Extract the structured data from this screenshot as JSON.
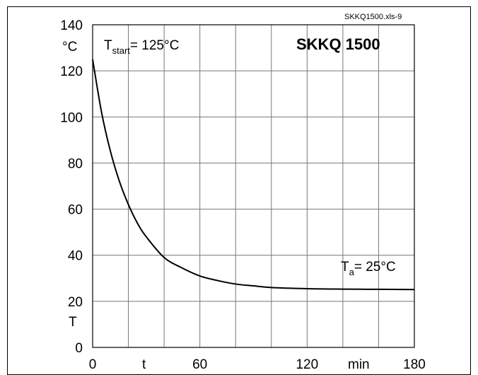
{
  "chart_data": {
    "type": "line",
    "title": "SKKQ 1500",
    "file_ref": "SKKQ1500.xls-9",
    "y_unit": "°C",
    "ylabel": "T",
    "x_unit": "min",
    "xlabel": "t",
    "xlim": [
      0,
      180
    ],
    "ylim": [
      0,
      140
    ],
    "x_ticks": [
      0,
      60,
      120,
      180
    ],
    "y_ticks": [
      0,
      20,
      40,
      60,
      80,
      100,
      120,
      140
    ],
    "grid": true,
    "annotations": {
      "start": {
        "base": "T",
        "sub": "start",
        "rest": "= 125°C"
      },
      "ambient": {
        "base": "T",
        "sub": "a",
        "rest": "= 25°C"
      }
    },
    "series": [
      {
        "x": [
          0,
          5,
          10,
          15,
          20,
          25,
          30,
          40,
          50,
          60,
          70,
          80,
          90,
          100,
          120,
          140,
          160,
          180
        ],
        "y": [
          125,
          102,
          85,
          72,
          62,
          54,
          48,
          39,
          34.5,
          31,
          29,
          27.5,
          26.7,
          26,
          25.5,
          25.3,
          25.2,
          25.1
        ]
      }
    ]
  }
}
